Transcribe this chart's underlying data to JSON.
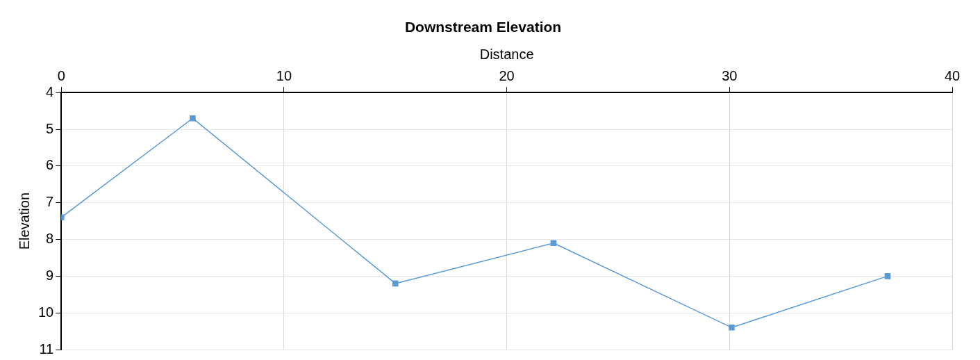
{
  "chart_data": {
    "type": "line",
    "title": "Downstream Elevation",
    "xlabel": "Distance",
    "ylabel": "Elevation",
    "xlim": [
      0,
      40
    ],
    "xticks": [
      0,
      10,
      20,
      30,
      40
    ],
    "ylim": [
      11,
      4
    ],
    "yticks": [
      4,
      5,
      6,
      7,
      8,
      9,
      10,
      11
    ],
    "grid": true,
    "marker": "square",
    "line_style": "solid",
    "legend": false,
    "series": [
      {
        "x": [
          0,
          5.9,
          15,
          22.1,
          30.1,
          37.1
        ],
        "values": [
          7.4,
          4.7,
          9.2,
          8.1,
          10.4,
          9.0
        ],
        "color": "#5b9bd5"
      }
    ]
  }
}
